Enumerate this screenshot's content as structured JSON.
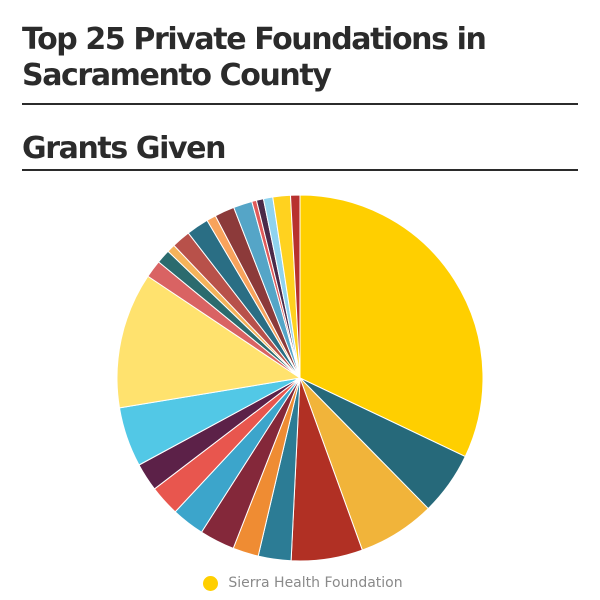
{
  "title": "Top 25 Private Foundations in Sacramento County",
  "subtitle": "Grants Given",
  "chart_data": {
    "type": "pie",
    "title": "Top 25 Private Foundations in Sacramento County",
    "subtitle": "Grants Given",
    "slice_order": "clockwise from 12 o'clock",
    "slices": [
      {
        "name": "Sierra Health Foundation",
        "value": 31.0,
        "color": "#FFCF00"
      },
      {
        "name": "",
        "value": 5.4,
        "color": "#26697A"
      },
      {
        "name": "",
        "value": 6.6,
        "color": "#F1B43A"
      },
      {
        "name": "",
        "value": 6.1,
        "color": "#B13024"
      },
      {
        "name": "",
        "value": 2.8,
        "color": "#2C7C95"
      },
      {
        "name": "",
        "value": 2.2,
        "color": "#EF8C33"
      },
      {
        "name": "",
        "value": 3.0,
        "color": "#84283A"
      },
      {
        "name": "",
        "value": 2.8,
        "color": "#3CA5CB"
      },
      {
        "name": "",
        "value": 2.6,
        "color": "#E8564E"
      },
      {
        "name": "",
        "value": 2.4,
        "color": "#5C2148"
      },
      {
        "name": "",
        "value": 5.1,
        "color": "#52C8E6"
      },
      {
        "name": "",
        "value": 11.6,
        "color": "#FFE26E"
      },
      {
        "name": "",
        "value": 1.5,
        "color": "#D96363"
      },
      {
        "name": "",
        "value": 1.2,
        "color": "#2B6B6E"
      },
      {
        "name": "",
        "value": 0.7,
        "color": "#F5B35A"
      },
      {
        "name": "",
        "value": 1.6,
        "color": "#B8514A"
      },
      {
        "name": "",
        "value": 1.9,
        "color": "#2A6E84"
      },
      {
        "name": "",
        "value": 0.8,
        "color": "#F7A35C"
      },
      {
        "name": "",
        "value": 1.7,
        "color": "#8C3A3A"
      },
      {
        "name": "",
        "value": 1.6,
        "color": "#55A5C7"
      },
      {
        "name": "",
        "value": 0.4,
        "color": "#E05A5A"
      },
      {
        "name": "",
        "value": 0.6,
        "color": "#4A2A4A"
      },
      {
        "name": "",
        "value": 0.8,
        "color": "#8FD3EE"
      },
      {
        "name": "",
        "value": 1.5,
        "color": "#FFD21F"
      },
      {
        "name": "",
        "value": 0.8,
        "color": "#B8312E"
      }
    ],
    "legend": {
      "position": "bottom",
      "visible_items": [
        "Sierra Health Foundation"
      ]
    }
  }
}
